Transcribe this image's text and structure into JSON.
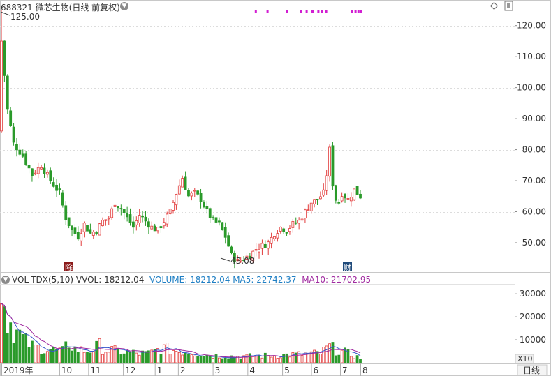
{
  "header": {
    "stock_code": "688321",
    "stock_name": "微芯生物",
    "period_label": "(日线 前复权)"
  },
  "volume_panel": {
    "indicator_name": "VOL-TDX(5,10)",
    "vvol_label": "VVOL:",
    "vvol_value": "18212.04",
    "volume_label": "VOLUME:",
    "volume_value": "18212.04",
    "ma5_label": "MA5:",
    "ma5_value": "22742.37",
    "ma10_label": "MA10:",
    "ma10_value": "21702.95",
    "scale_tag": "X10"
  },
  "bottom_bar": {
    "period_button": "日线"
  },
  "colors": {
    "up": "#e23b3b",
    "down": "#2a9a2a",
    "ma5": "#3355cc",
    "ma10": "#a02aa0",
    "volume_text": "#1f7fc4",
    "event_marker": "#d21ed2"
  },
  "chart_data": [
    {
      "type": "candlestick",
      "series": [
        {
          "name": "688321 微芯生物"
        }
      ],
      "y_ticks": [
        "50.00",
        "60.00",
        "70.00",
        "80.00",
        "90.00",
        "100.00",
        "110.00",
        "120.00"
      ],
      "ylim": [
        41,
        126
      ],
      "max_label": "125.00",
      "min_label": "43.08",
      "flag_labels": [
        "除",
        "财"
      ],
      "anchors": [
        [
          0,
          115
        ],
        [
          2,
          93
        ],
        [
          4,
          82
        ],
        [
          7,
          78
        ],
        [
          10,
          72
        ],
        [
          13,
          75
        ],
        [
          16,
          70
        ],
        [
          19,
          66
        ],
        [
          21,
          58
        ],
        [
          23,
          54
        ],
        [
          25,
          52
        ],
        [
          27,
          56
        ],
        [
          29,
          53
        ],
        [
          31,
          54
        ],
        [
          33,
          57
        ],
        [
          35,
          58
        ],
        [
          37,
          63
        ],
        [
          39,
          61
        ],
        [
          41,
          58
        ],
        [
          43,
          55
        ],
        [
          45,
          59
        ],
        [
          47,
          57
        ],
        [
          49,
          55
        ],
        [
          51,
          54
        ],
        [
          53,
          57
        ],
        [
          55,
          60
        ],
        [
          57,
          66
        ],
        [
          59,
          71
        ],
        [
          61,
          65
        ],
        [
          63,
          66
        ],
        [
          65,
          64
        ],
        [
          67,
          60
        ],
        [
          69,
          57
        ],
        [
          71,
          56
        ],
        [
          73,
          52
        ],
        [
          75,
          46
        ],
        [
          77,
          44
        ],
        [
          79,
          45
        ],
        [
          81,
          46
        ],
        [
          83,
          48
        ],
        [
          85,
          49
        ],
        [
          87,
          50
        ],
        [
          89,
          53
        ],
        [
          91,
          55
        ],
        [
          93,
          54
        ],
        [
          95,
          56
        ],
        [
          97,
          57
        ],
        [
          99,
          60
        ],
        [
          101,
          63
        ],
        [
          103,
          64
        ],
        [
          105,
          66
        ],
        [
          106,
          72
        ],
        [
          107,
          80
        ],
        [
          108,
          69
        ],
        [
          109,
          64
        ],
        [
          110,
          63
        ],
        [
          111,
          66
        ],
        [
          113,
          64
        ],
        [
          115,
          67
        ],
        [
          117,
          65
        ]
      ],
      "candle_count": 118
    },
    {
      "type": "bar",
      "title": "VOL-TDX(5,10)",
      "y_ticks": [
        "10000",
        "20000",
        "30000"
      ],
      "ylim": [
        0,
        34000
      ],
      "series": [
        {
          "name": "VOLUME",
          "kind": "bar"
        },
        {
          "name": "MA5",
          "kind": "line"
        },
        {
          "name": "MA10",
          "kind": "line"
        }
      ],
      "anchors": [
        [
          0,
          33000
        ],
        [
          1,
          25000
        ],
        [
          2,
          20000
        ],
        [
          4,
          15000
        ],
        [
          6,
          12000
        ],
        [
          8,
          9000
        ],
        [
          10,
          7000
        ],
        [
          12,
          6500
        ],
        [
          14,
          6000
        ],
        [
          17,
          5500
        ],
        [
          20,
          5000
        ],
        [
          22,
          8500
        ],
        [
          24,
          6000
        ],
        [
          26,
          5500
        ],
        [
          28,
          5000
        ],
        [
          30,
          6000
        ],
        [
          32,
          7500
        ],
        [
          34,
          5500
        ],
        [
          36,
          5500
        ],
        [
          38,
          5000
        ],
        [
          40,
          4500
        ],
        [
          42,
          4500
        ],
        [
          44,
          4000
        ],
        [
          46,
          4000
        ],
        [
          48,
          4000
        ],
        [
          50,
          5000
        ],
        [
          52,
          6500
        ],
        [
          54,
          6000
        ],
        [
          56,
          5500
        ],
        [
          58,
          5000
        ],
        [
          60,
          4800
        ],
        [
          62,
          4500
        ],
        [
          64,
          4000
        ],
        [
          66,
          3500
        ],
        [
          70,
          3000
        ],
        [
          75,
          2800
        ],
        [
          80,
          2800
        ],
        [
          85,
          3000
        ],
        [
          90,
          3200
        ],
        [
          95,
          3500
        ],
        [
          100,
          3800
        ],
        [
          104,
          4200
        ],
        [
          107,
          7000
        ],
        [
          109,
          5500
        ],
        [
          112,
          4500
        ],
        [
          117,
          2000
        ]
      ],
      "x_ticks": [
        "2019年",
        "10",
        "11",
        "12",
        "1",
        "2",
        "3",
        "4",
        "5",
        "6",
        "7",
        "8"
      ]
    }
  ]
}
